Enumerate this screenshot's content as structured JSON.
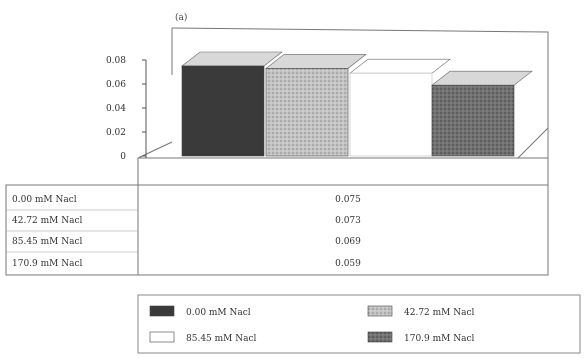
{
  "chart_data": {
    "type": "bar",
    "panel_label": "(a)",
    "categories": [
      "0.00 mM Nacl",
      "42.72 mM Nacl",
      "85.45 mM Nacl",
      "170.9 mM Nacl"
    ],
    "values": [
      0.075,
      0.073,
      0.069,
      0.059
    ],
    "value_labels": [
      "0.075",
      "0.073",
      "0.069",
      "0.059"
    ],
    "y_ticks": [
      "0",
      "0.02",
      "0.04",
      "0.06",
      "0.08"
    ],
    "ylim": [
      0,
      0.08
    ],
    "grid": false,
    "style": "3d",
    "legend_position": "bottom",
    "colors": [
      "#3a3a3a",
      "#b4b4b4",
      "#ffffff",
      "#6a6a6a"
    ],
    "has_data_table": true
  }
}
